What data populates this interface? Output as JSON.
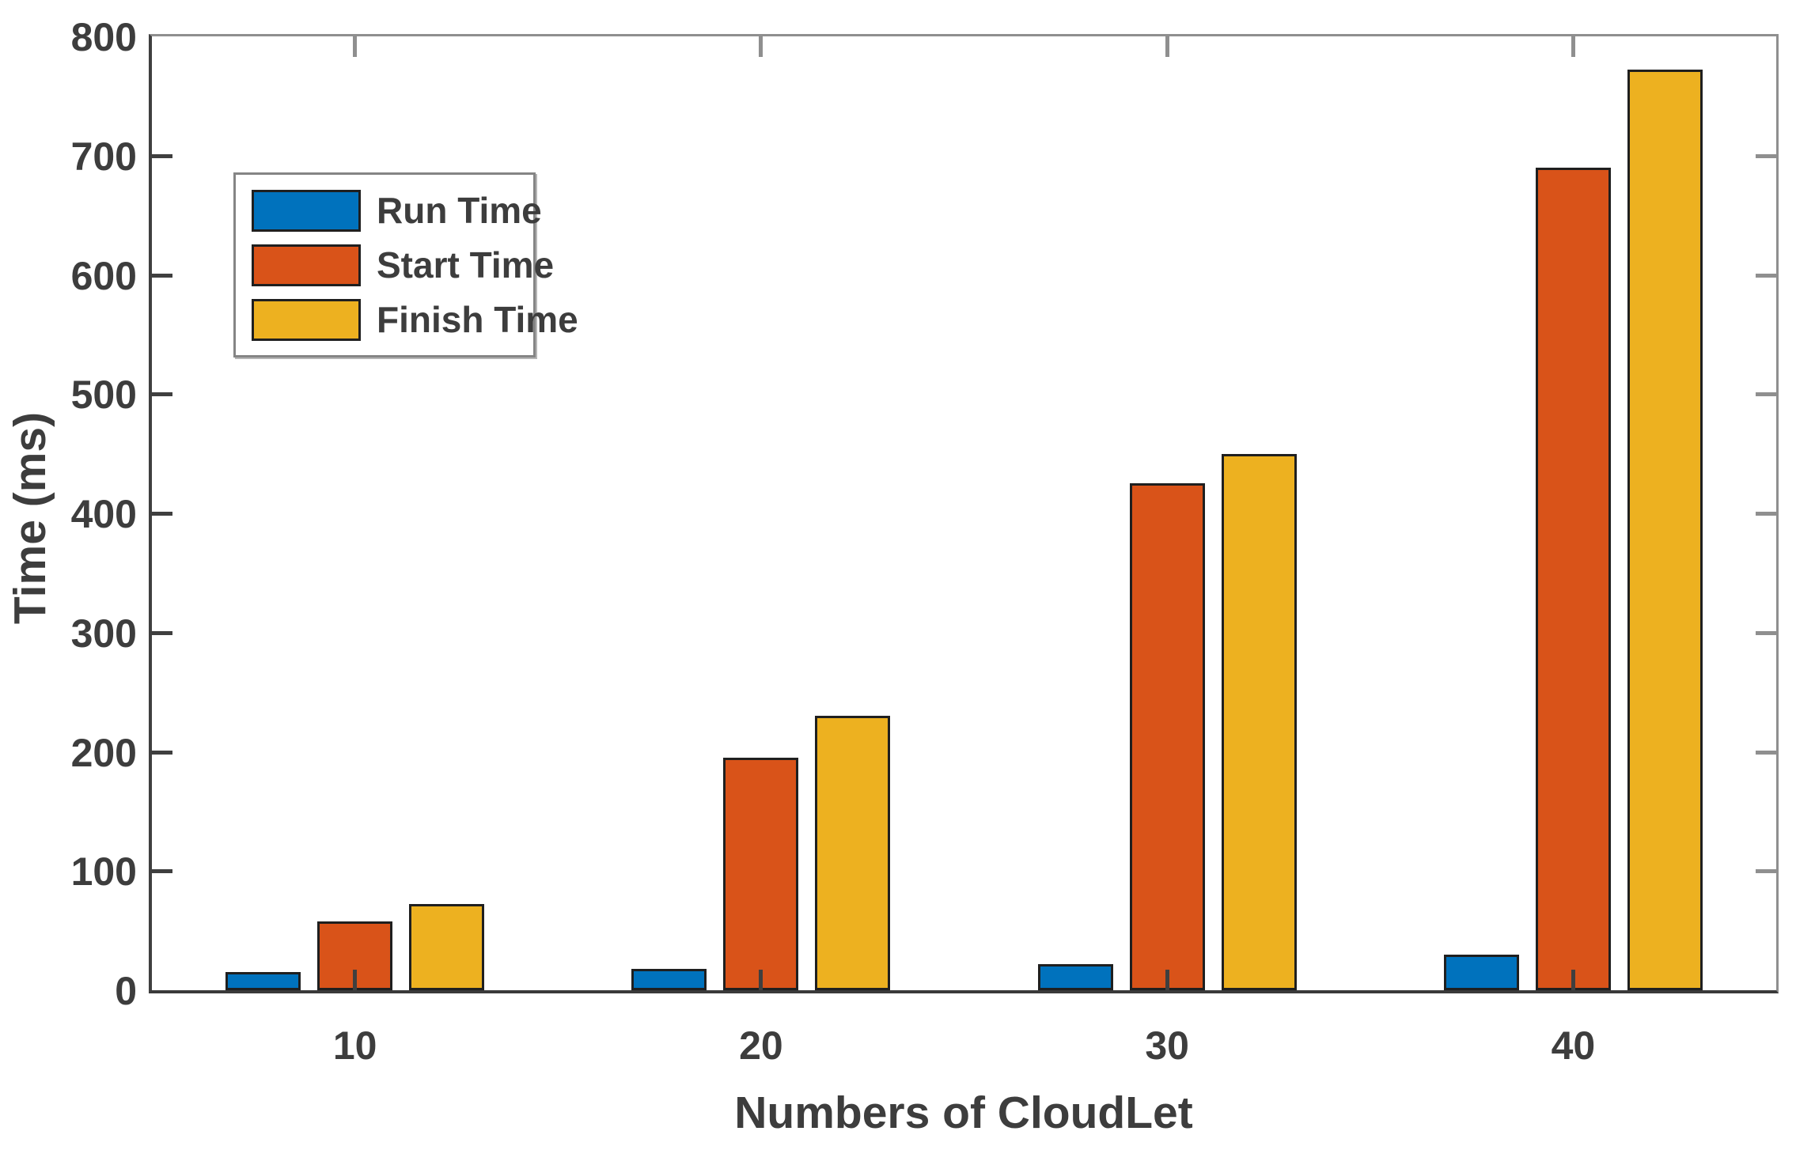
{
  "chart_data": {
    "type": "bar",
    "title": "",
    "categories": [
      "10",
      "20",
      "30",
      "40"
    ],
    "series": [
      {
        "name": "Run Time",
        "color": "#0072BD",
        "values": [
          15,
          18,
          22,
          30
        ]
      },
      {
        "name": "Start Time",
        "color": "#D95319",
        "values": [
          58,
          195,
          425,
          690
        ]
      },
      {
        "name": "Finish Time",
        "color": "#EDB120",
        "values": [
          72,
          230,
          450,
          772
        ]
      }
    ],
    "xlabel": "Numbers of CloudLet",
    "ylabel": "Time (ms)",
    "ylim": [
      0,
      800
    ],
    "ytick_step": 100,
    "ytick_labels": [
      "0",
      "100",
      "200",
      "300",
      "400",
      "500",
      "600",
      "700",
      "800"
    ],
    "grid": false,
    "legend_position": "upper-left",
    "bar_edge_color": "#1f1f1f",
    "axis_color": "#3f3f3f",
    "box_color": "#8f8f8f",
    "text_color": "#3d3d3d",
    "background_color": "#ffffff"
  }
}
